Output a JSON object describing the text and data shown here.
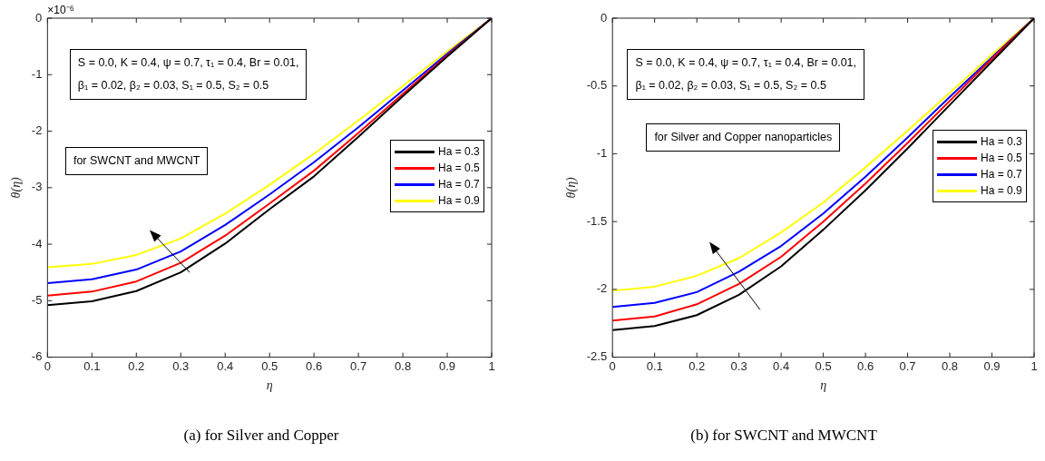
{
  "chart_data": [
    {
      "type": "line",
      "xlabel": "η",
      "ylabel": "θ(η)",
      "x": [
        0,
        0.1,
        0.2,
        0.3,
        0.4,
        0.5,
        0.6,
        0.7,
        0.8,
        0.9,
        1
      ],
      "xlim": [
        0,
        1
      ],
      "xticks": [
        0,
        0.1,
        0.2,
        0.3,
        0.4,
        0.5,
        0.6,
        0.7,
        0.8,
        0.9,
        1
      ],
      "ylim": [
        -6,
        0
      ],
      "yticks": [
        -6,
        -5,
        -4,
        -3,
        -2,
        -1,
        0
      ],
      "legend": "right",
      "grid": false,
      "marker": "none",
      "line_style": "solid",
      "annotations": [
        "S = 0.0, K = 0.4, ψ = 0.7, τ₁ = 0.4, Br = 0.01,",
        "β₁ = 0.02, β₂ = 0.03, S₁ = 0.5, S₂ = 0.5",
        "for SWCNT and MWCNT",
        "(a) for Silver and Copper",
        "×10⁻⁶"
      ],
      "series": [
        {
          "name": "Ha = 0.3",
          "color": "#000000",
          "values": [
            -5.08,
            -5.01,
            -4.83,
            -4.5,
            -3.99,
            -3.38,
            -2.8,
            -2.1,
            -1.38,
            -0.68,
            0
          ]
        },
        {
          "name": "Ha = 0.5",
          "color": "#ff0000",
          "values": [
            -4.91,
            -4.84,
            -4.66,
            -4.33,
            -3.85,
            -3.28,
            -2.7,
            -2.03,
            -1.34,
            -0.66,
            0
          ]
        },
        {
          "name": "Ha = 0.7",
          "color": "#0000ff",
          "values": [
            -4.69,
            -4.62,
            -4.45,
            -4.13,
            -3.66,
            -3.12,
            -2.55,
            -1.93,
            -1.28,
            -0.63,
            0
          ]
        },
        {
          "name": "Ha = 0.9",
          "color": "#ffff00",
          "values": [
            -4.41,
            -4.35,
            -4.19,
            -3.9,
            -3.46,
            -2.95,
            -2.4,
            -1.81,
            -1.2,
            -0.59,
            0
          ]
        }
      ]
    },
    {
      "type": "line",
      "xlabel": "η",
      "ylabel": "θ(η)",
      "x": [
        0,
        0.1,
        0.2,
        0.3,
        0.4,
        0.5,
        0.6,
        0.7,
        0.8,
        0.9,
        1
      ],
      "xlim": [
        0,
        1
      ],
      "xticks": [
        0,
        0.1,
        0.2,
        0.3,
        0.4,
        0.5,
        0.6,
        0.7,
        0.8,
        0.9,
        1
      ],
      "ylim": [
        -2.5,
        0
      ],
      "yticks": [
        -2.5,
        -2,
        -1.5,
        -1,
        -0.5,
        0
      ],
      "legend": "right",
      "grid": false,
      "marker": "none",
      "line_style": "solid",
      "annotations": [
        "S = 0.0, K = 0.4, ψ = 0.7, τ₁ = 0.4, Br = 0.01,",
        "β₁ = 0.02, β₂ = 0.03, S₁ = 0.5, S₂ = 0.5",
        "for Silver and Copper nanoparticles",
        "(b) for SWCNT and MWCNT"
      ],
      "series": [
        {
          "name": "Ha = 0.3",
          "color": "#000000",
          "values": [
            -2.3,
            -2.27,
            -2.19,
            -2.04,
            -1.83,
            -1.56,
            -1.27,
            -0.96,
            -0.64,
            -0.32,
            0
          ]
        },
        {
          "name": "Ha = 0.5",
          "color": "#ff0000",
          "values": [
            -2.23,
            -2.2,
            -2.11,
            -1.96,
            -1.76,
            -1.5,
            -1.22,
            -0.92,
            -0.61,
            -0.3,
            0
          ]
        },
        {
          "name": "Ha = 0.7",
          "color": "#0000ff",
          "values": [
            -2.13,
            -2.1,
            -2.02,
            -1.87,
            -1.68,
            -1.44,
            -1.17,
            -0.88,
            -0.58,
            -0.29,
            0
          ]
        },
        {
          "name": "Ha = 0.9",
          "color": "#ffff00",
          "values": [
            -2.01,
            -1.98,
            -1.9,
            -1.77,
            -1.58,
            -1.36,
            -1.1,
            -0.83,
            -0.55,
            -0.27,
            0
          ]
        }
      ]
    }
  ]
}
